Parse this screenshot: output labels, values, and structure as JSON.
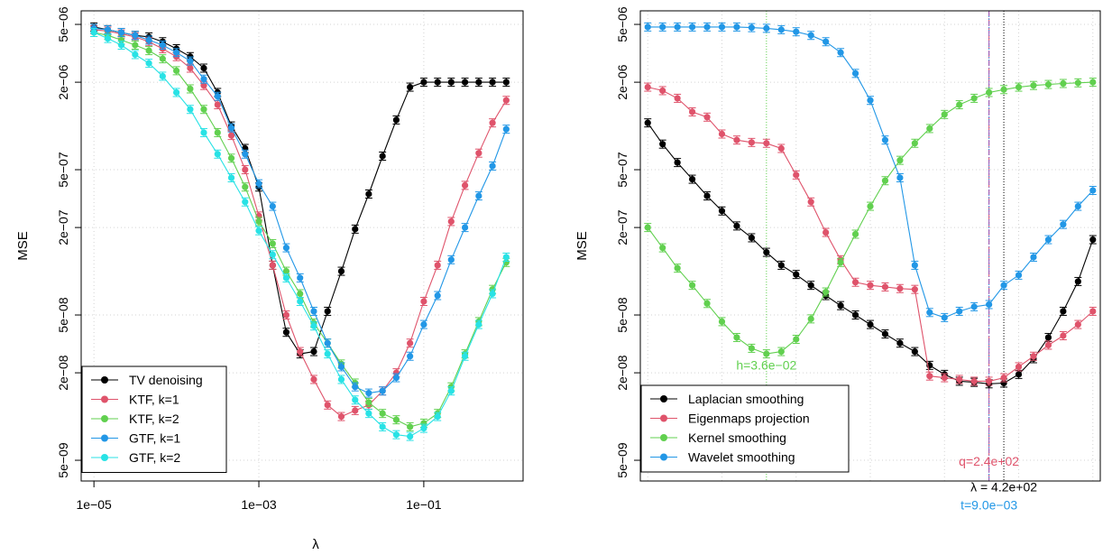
{
  "chart_data": [
    {
      "type": "line",
      "panel": "left",
      "xscale": "log10",
      "yscale": "log10",
      "xlabel": "λ",
      "ylabel": "MSE",
      "xlim": [
        7e-06,
        1.6
      ],
      "ylim": [
        3.6e-09,
        6.2e-06
      ],
      "x_ticks": [
        {
          "v": 1e-05,
          "label": "1e−05"
        },
        {
          "v": 0.001,
          "label": "1e−03"
        },
        {
          "v": 0.1,
          "label": "1e−01"
        }
      ],
      "y_ticks": [
        {
          "v": 5e-06,
          "label": "5e−06"
        },
        {
          "v": 2e-06,
          "label": "2e−06"
        },
        {
          "v": 5e-07,
          "label": "5e−07"
        },
        {
          "v": 2e-07,
          "label": "2e−07"
        },
        {
          "v": 5e-08,
          "label": "5e−08"
        },
        {
          "v": 2e-08,
          "label": "2e−08"
        },
        {
          "v": 5e-09,
          "label": "5e−09"
        }
      ],
      "grid": true,
      "legend_position": "bottom-left",
      "series": [
        {
          "name": "TV denoising",
          "color": "#000000",
          "x": [
            1e-05,
            1.47e-05,
            2.15e-05,
            3.16e-05,
            4.64e-05,
            6.81e-05,
            0.0001,
            0.000147,
            0.000215,
            0.000316,
            0.000464,
            0.000681,
            0.001,
            0.00147,
            0.00215,
            0.00316,
            0.00464,
            0.00681,
            0.01,
            0.0147,
            0.0215,
            0.0316,
            0.0464,
            0.0681,
            0.1,
            0.147,
            0.215,
            0.316,
            0.464,
            0.681,
            1
          ],
          "y": [
            4.8e-06,
            4.6e-06,
            4.4e-06,
            4.2e-06,
            4.1e-06,
            3.8e-06,
            3.4e-06,
            3e-06,
            2.5e-06,
            1.7e-06,
            1e-06,
            7e-07,
            3.8e-07,
            1.1e-07,
            3.8e-08,
            2.7e-08,
            2.8e-08,
            5.3e-08,
            1e-07,
            1.95e-07,
            3.4e-07,
            6.2e-07,
            1.1e-06,
            1.85e-06,
            2e-06,
            2e-06,
            2e-06,
            2e-06,
            2e-06,
            2e-06,
            2e-06
          ]
        },
        {
          "name": "KTF, k=1",
          "color": "#DF536B",
          "x": [
            1e-05,
            1.47e-05,
            2.15e-05,
            3.16e-05,
            4.64e-05,
            6.81e-05,
            0.0001,
            0.000147,
            0.000215,
            0.000316,
            0.000464,
            0.000681,
            0.001,
            0.00147,
            0.00215,
            0.00316,
            0.00464,
            0.00681,
            0.01,
            0.0147,
            0.0215,
            0.0316,
            0.0464,
            0.0681,
            0.1,
            0.147,
            0.215,
            0.316,
            0.464,
            0.681,
            1
          ],
          "y": [
            4.6e-06,
            4.5e-06,
            4.3e-06,
            4.1e-06,
            3.8e-06,
            3.4e-06,
            3e-06,
            2.5e-06,
            1.9e-06,
            1.4e-06,
            8.6e-07,
            5e-07,
            2.4e-07,
            1.1e-07,
            5e-08,
            2.8e-08,
            1.8e-08,
            1.2e-08,
            1e-08,
            1.1e-08,
            1.2e-08,
            1.5e-08,
            2e-08,
            3.2e-08,
            6.2e-08,
            1.1e-07,
            2.2e-07,
            3.9e-07,
            6.5e-07,
            1.05e-06,
            1.5e-06
          ]
        },
        {
          "name": "KTF, k=2",
          "color": "#61D04F",
          "x": [
            1e-05,
            1.47e-05,
            2.15e-05,
            3.16e-05,
            4.64e-05,
            6.81e-05,
            0.0001,
            0.000147,
            0.000215,
            0.000316,
            0.000464,
            0.000681,
            0.001,
            0.00147,
            0.00215,
            0.00316,
            0.00464,
            0.00681,
            0.01,
            0.0147,
            0.0215,
            0.0316,
            0.0464,
            0.0681,
            0.1,
            0.147,
            0.215,
            0.316,
            0.464,
            0.681,
            1
          ],
          "y": [
            4.4e-06,
            4.2e-06,
            3.9e-06,
            3.6e-06,
            3.3e-06,
            2.9e-06,
            2.4e-06,
            1.8e-06,
            1.3e-06,
            9e-07,
            6e-07,
            3.8e-07,
            2.2e-07,
            1.55e-07,
            1e-07,
            7e-08,
            4.4e-08,
            3.2e-08,
            2.3e-08,
            1.7e-08,
            1.25e-08,
            1.05e-08,
            9.5e-09,
            8.5e-09,
            9e-09,
            1.05e-08,
            1.6e-08,
            2.7e-08,
            4.5e-08,
            7.5e-08,
            1.15e-07
          ]
        },
        {
          "name": "GTF, k=1",
          "color": "#2297E6",
          "x": [
            1e-05,
            1.47e-05,
            2.15e-05,
            3.16e-05,
            4.64e-05,
            6.81e-05,
            0.0001,
            0.000147,
            0.000215,
            0.000316,
            0.000464,
            0.000681,
            0.001,
            0.00147,
            0.00215,
            0.00316,
            0.00464,
            0.00681,
            0.01,
            0.0147,
            0.0215,
            0.0316,
            0.0464,
            0.0681,
            0.1,
            0.147,
            0.215,
            0.316,
            0.464,
            0.681,
            1
          ],
          "y": [
            4.7e-06,
            4.6e-06,
            4.4e-06,
            4.2e-06,
            3.9e-06,
            3.6e-06,
            3.2e-06,
            2.8e-06,
            2.1e-06,
            1.6e-06,
            9.7e-07,
            6.4e-07,
            4e-07,
            2.8e-07,
            1.45e-07,
            9e-08,
            5.3e-08,
            3.2e-08,
            2.2e-08,
            1.6e-08,
            1.45e-08,
            1.5e-08,
            1.85e-08,
            2.6e-08,
            4.3e-08,
            6.8e-08,
            1.2e-07,
            2e-07,
            3.3e-07,
            5.3e-07,
            9.5e-07
          ]
        },
        {
          "name": "GTF, k=2",
          "color": "#28E2E5",
          "x": [
            1e-05,
            1.47e-05,
            2.15e-05,
            3.16e-05,
            4.64e-05,
            6.81e-05,
            0.0001,
            0.000147,
            0.000215,
            0.000316,
            0.000464,
            0.000681,
            0.001,
            0.00147,
            0.00215,
            0.00316,
            0.00464,
            0.00681,
            0.01,
            0.0147,
            0.0215,
            0.0316,
            0.0464,
            0.0681,
            0.1,
            0.147,
            0.215,
            0.316,
            0.464,
            0.681,
            1
          ],
          "y": [
            4.4e-06,
            4e-06,
            3.6e-06,
            3.1e-06,
            2.7e-06,
            2.2e-06,
            1.7e-06,
            1.3e-06,
            9e-07,
            6.4e-07,
            4.4e-07,
            3e-07,
            1.9e-07,
            1.3e-07,
            9e-08,
            6.2e-08,
            4.2e-08,
            2.7e-08,
            1.8e-08,
            1.3e-08,
            1.05e-08,
            8.5e-09,
            7.5e-09,
            7.3e-09,
            8.3e-09,
            1e-08,
            1.5e-08,
            2.6e-08,
            4.3e-08,
            7e-08,
            1.25e-07
          ]
        }
      ]
    },
    {
      "type": "line",
      "panel": "right",
      "xscale": "none",
      "yscale": "log10",
      "xlabel": "",
      "ylabel": "MSE",
      "xlim": [
        0.5,
        31.5
      ],
      "ylim": [
        3.6e-09,
        6.2e-06
      ],
      "y_ticks": [
        {
          "v": 5e-06,
          "label": "5e−06"
        },
        {
          "v": 2e-06,
          "label": "2e−06"
        },
        {
          "v": 5e-07,
          "label": "5e−07"
        },
        {
          "v": 2e-07,
          "label": "2e−07"
        },
        {
          "v": 5e-08,
          "label": "5e−08"
        },
        {
          "v": 2e-08,
          "label": "2e−08"
        },
        {
          "v": 5e-09,
          "label": "5e−09"
        }
      ],
      "grid": true,
      "legend_position": "bottom-left",
      "series": [
        {
          "name": "Laplacian smoothing",
          "color": "#000000",
          "x": [
            1,
            2,
            3,
            4,
            5,
            6,
            7,
            8,
            9,
            10,
            11,
            12,
            13,
            14,
            15,
            16,
            17,
            18,
            19,
            20,
            21,
            22,
            23,
            24,
            25,
            26,
            27,
            28,
            29,
            30,
            31
          ],
          "y": [
            1.05e-06,
            7.5e-07,
            5.6e-07,
            4.3e-07,
            3.3e-07,
            2.6e-07,
            2.05e-07,
            1.7e-07,
            1.35e-07,
            1.1e-07,
            9.5e-08,
            8e-08,
            6.8e-08,
            5.8e-08,
            5e-08,
            4.3e-08,
            3.7e-08,
            3.2e-08,
            2.8e-08,
            2.25e-08,
            1.95e-08,
            1.75e-08,
            1.72e-08,
            1.68e-08,
            1.7e-08,
            1.95e-08,
            2.5e-08,
            3.5e-08,
            5.3e-08,
            8.5e-08,
            1.65e-07
          ]
        },
        {
          "name": "Eigenmaps projection",
          "color": "#DF536B",
          "x": [
            1,
            2,
            3,
            4,
            5,
            6,
            7,
            8,
            9,
            10,
            11,
            12,
            13,
            14,
            15,
            16,
            17,
            18,
            19,
            20,
            21,
            22,
            23,
            24,
            25,
            26,
            27,
            28,
            29,
            30,
            31
          ],
          "y": [
            1.85e-06,
            1.75e-06,
            1.55e-06,
            1.25e-06,
            1.15e-06,
            8.8e-07,
            8e-07,
            7.7e-07,
            7.6e-07,
            7e-07,
            4.6e-07,
            3e-07,
            1.85e-07,
            1.2e-07,
            8.4e-08,
            8e-08,
            7.8e-08,
            7.6e-08,
            7.5e-08,
            1.9e-08,
            1.85e-08,
            1.8e-08,
            1.75e-08,
            1.75e-08,
            1.85e-08,
            2.2e-08,
            2.6e-08,
            3.1e-08,
            3.6e-08,
            4.3e-08,
            5.3e-08
          ]
        },
        {
          "name": "Kernel smoothing",
          "color": "#61D04F",
          "x": [
            1,
            2,
            3,
            4,
            5,
            6,
            7,
            8,
            9,
            10,
            11,
            12,
            13,
            14,
            15,
            16,
            17,
            18,
            19,
            20,
            21,
            22,
            23,
            24,
            25,
            26,
            27,
            28,
            29,
            30,
            31
          ],
          "y": [
            2e-07,
            1.45e-07,
            1.05e-07,
            8e-08,
            6e-08,
            4.5e-08,
            3.5e-08,
            2.95e-08,
            2.7e-08,
            2.8e-08,
            3.4e-08,
            4.7e-08,
            7.2e-08,
            1.15e-07,
            1.8e-07,
            2.8e-07,
            4.2e-07,
            5.8e-07,
            7.6e-07,
            9.6e-07,
            1.2e-06,
            1.4e-06,
            1.55e-06,
            1.7e-06,
            1.78e-06,
            1.85e-06,
            1.9e-06,
            1.93e-06,
            1.96e-06,
            1.98e-06,
            2e-06
          ]
        },
        {
          "name": "Wavelet smoothing",
          "color": "#2297E6",
          "x": [
            1,
            2,
            3,
            4,
            5,
            6,
            7,
            8,
            9,
            10,
            11,
            12,
            13,
            14,
            15,
            16,
            17,
            18,
            19,
            20,
            21,
            22,
            23,
            24,
            25,
            26,
            27,
            28,
            29,
            30,
            31
          ],
          "y": [
            4.8e-06,
            4.8e-06,
            4.8e-06,
            4.8e-06,
            4.8e-06,
            4.8e-06,
            4.8e-06,
            4.75e-06,
            4.7e-06,
            4.6e-06,
            4.45e-06,
            4.2e-06,
            3.8e-06,
            3.2e-06,
            2.3e-06,
            1.5e-06,
            8e-07,
            4.4e-07,
            1.1e-07,
            5.2e-08,
            4.8e-08,
            5.3e-08,
            5.7e-08,
            5.9e-08,
            8e-08,
            9.4e-08,
            1.25e-07,
            1.65e-07,
            2.1e-07,
            2.8e-07,
            3.6e-07
          ]
        }
      ],
      "annotations": [
        {
          "text": "h=3.6e−02",
          "color": "#61D04F",
          "x": 9,
          "label_y": 2.1e-08
        },
        {
          "text": "q=2.4e+02",
          "color": "#DF536B",
          "x": 24,
          "label_y": 4.6e-09
        },
        {
          "text": "λ = 4.2e+02",
          "color": "#000000",
          "x": 25,
          "label_y": 3.05e-09
        },
        {
          "text": "t=9.0e−03",
          "color": "#2297E6",
          "x": 24,
          "label_y": 2.3e-09
        }
      ]
    }
  ]
}
